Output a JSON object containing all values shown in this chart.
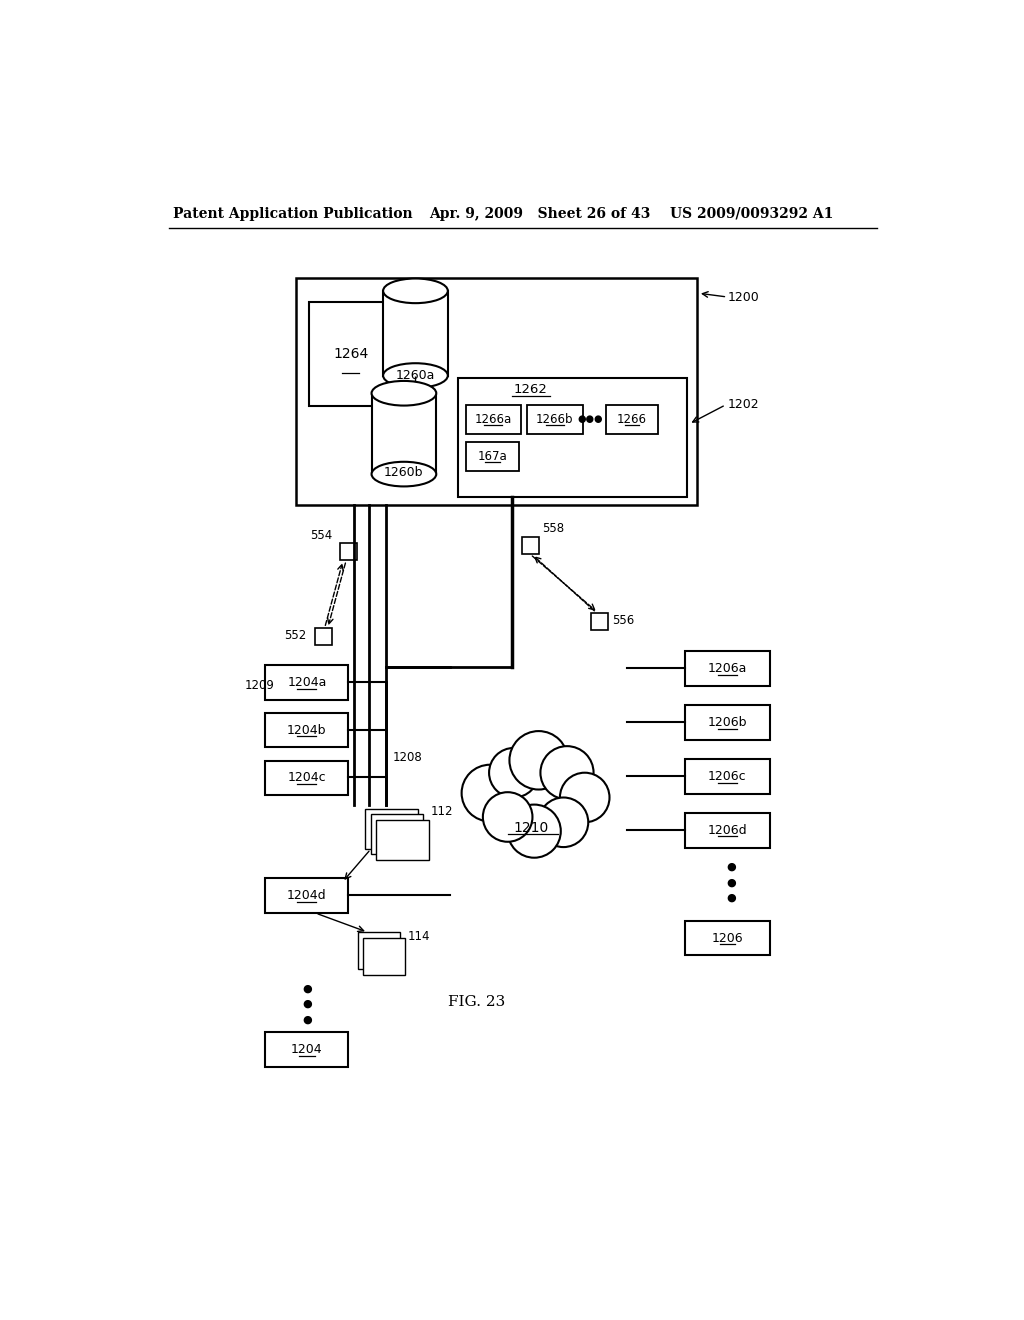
{
  "bg_color": "#ffffff",
  "header_left": "Patent Application Publication",
  "header_mid": "Apr. 9, 2009   Sheet 26 of 43",
  "header_right": "US 2009/0093292 A1",
  "fig_label": "FIG. 23"
}
